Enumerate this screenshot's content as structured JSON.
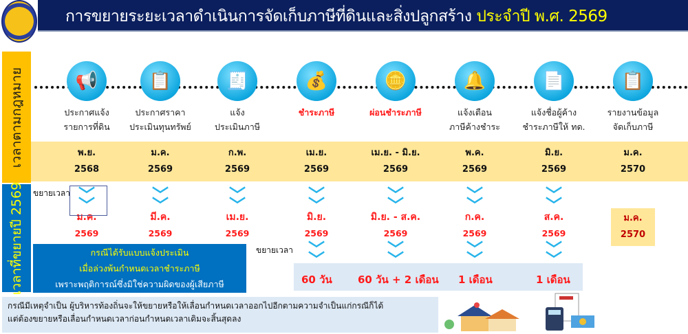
{
  "header": {
    "title": "การขยายระยะเวลาดำเนินการจัดเก็บภาษีที่ดินและสิ่งปลูกสร้าง",
    "title_highlight": "ประจำปี พ.ศ. 2569",
    "accent": "#ffff00",
    "background": "#0b1f5e"
  },
  "side_labels": {
    "legal": "เวลาตามกฎหมาย",
    "extended": "เวลาที่ขยายปี 2569"
  },
  "steps": [
    {
      "icon": "megaphone-icon",
      "label1": "ประกาศแจ้ง",
      "label2": "รายการที่ดิน",
      "month": "พ.ย.",
      "year": "2568"
    },
    {
      "icon": "checklist-icon",
      "label1": "ประกาศราคา",
      "label2": "ประเมินทุนทรัพย์",
      "month": "ม.ค.",
      "year": "2569"
    },
    {
      "icon": "tax-form-icon",
      "label1": "แจ้ง",
      "label2": "ประเมินภาษี",
      "month": "ก.พ.",
      "year": "2569"
    },
    {
      "icon": "money-bag-icon",
      "label1": "ชำระภาษี",
      "label2": "",
      "month": "เม.ย.",
      "year": "2569",
      "highlight": true
    },
    {
      "icon": "coin-hand-icon",
      "label1": "ผ่อนชำระภาษี",
      "label2": "",
      "month": "เม.ย. - มิ.ย.",
      "year": "2569",
      "highlight": true
    },
    {
      "icon": "bell-icon",
      "label1": "แจ้งเตือน",
      "label2": "ภาษีค้างชำระ",
      "month": "พ.ค.",
      "year": "2569"
    },
    {
      "icon": "tax-document-icon",
      "label1": "แจ้งชื่อผู้ค้าง",
      "label2": "ชำระภาษีให้ ทด.",
      "month": "มิ.ย.",
      "year": "2569"
    },
    {
      "icon": "report-clipboard-icon",
      "label1": "รายงานข้อมูล",
      "label2": "จัดเก็บภาษี",
      "month": "ม.ค.",
      "year": "2570"
    }
  ],
  "extended": {
    "extend_label": "ขยายเวลา",
    "items": [
      {
        "month": "ม.ค.",
        "year": "2569"
      },
      {
        "month": "มี.ค.",
        "year": "2569"
      },
      {
        "month": "เม.ย.",
        "year": "2569"
      },
      {
        "month": "มิ.ย.",
        "year": "2569"
      },
      {
        "month": "มิ.ย. - ส.ค.",
        "year": "2569"
      },
      {
        "month": "ก.ค.",
        "year": "2569"
      },
      {
        "month": "ส.ค.",
        "year": "2569"
      },
      {
        "month": "ม.ค.",
        "year": "2570"
      }
    ],
    "durations": [
      "60 วัน",
      "60 วัน + 2 เดือน",
      "1 เดือน",
      "1 เดือน"
    ]
  },
  "condition_box": {
    "line1": "กรณีได้รับแบบแจ้งประเมิน",
    "line2": "เมื่อล่วงพ้นกำหนดเวลาชำระภาษี",
    "line3": "เพราะพฤติการณ์ซึ่งมิใช่ความผิดของผู้เสียภาษี"
  },
  "note": {
    "line1": "กรณีมีเหตุจำเป็น ผู้บริหารท้องถิ่นจะให้ขยายหรือให้เลื่อนกำหนดเวลาออกไปอีกตามความจำเป็นแก่กรณีก็ได้",
    "line2": "แต่ต้องขยายหรือเลื่อนกำหนดเวลาก่อนกำหนดเวลาเดิมจะสิ้นสุดลง"
  },
  "images": {
    "house": "house-illustration",
    "calculator": "tax-calculator-illustration"
  }
}
